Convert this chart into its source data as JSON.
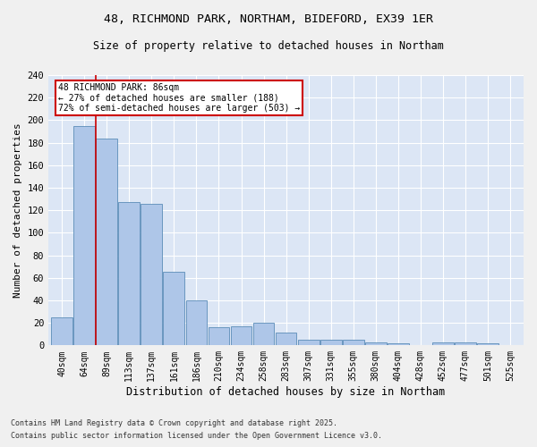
{
  "title1": "48, RICHMOND PARK, NORTHAM, BIDEFORD, EX39 1ER",
  "title2": "Size of property relative to detached houses in Northam",
  "xlabel": "Distribution of detached houses by size in Northam",
  "ylabel": "Number of detached properties",
  "categories": [
    "40sqm",
    "64sqm",
    "89sqm",
    "113sqm",
    "137sqm",
    "161sqm",
    "186sqm",
    "210sqm",
    "234sqm",
    "258sqm",
    "283sqm",
    "307sqm",
    "331sqm",
    "355sqm",
    "380sqm",
    "404sqm",
    "428sqm",
    "452sqm",
    "477sqm",
    "501sqm",
    "525sqm"
  ],
  "values": [
    25,
    195,
    184,
    127,
    126,
    65,
    40,
    16,
    17,
    20,
    11,
    5,
    5,
    5,
    3,
    2,
    0,
    3,
    3,
    2,
    0
  ],
  "bar_color": "#aec6e8",
  "bar_edge_color": "#5b8db8",
  "bg_color": "#dce6f5",
  "grid_color": "#ffffff",
  "vline_x": 1.5,
  "vline_color": "#cc0000",
  "annotation_text": "48 RICHMOND PARK: 86sqm\n← 27% of detached houses are smaller (188)\n72% of semi-detached houses are larger (503) →",
  "annotation_box_color": "#cc0000",
  "ylim": [
    0,
    240
  ],
  "yticks": [
    0,
    20,
    40,
    60,
    80,
    100,
    120,
    140,
    160,
    180,
    200,
    220,
    240
  ],
  "footer1": "Contains HM Land Registry data © Crown copyright and database right 2025.",
  "footer2": "Contains public sector information licensed under the Open Government Licence v3.0.",
  "fig_width": 6.0,
  "fig_height": 5.0,
  "dpi": 100
}
